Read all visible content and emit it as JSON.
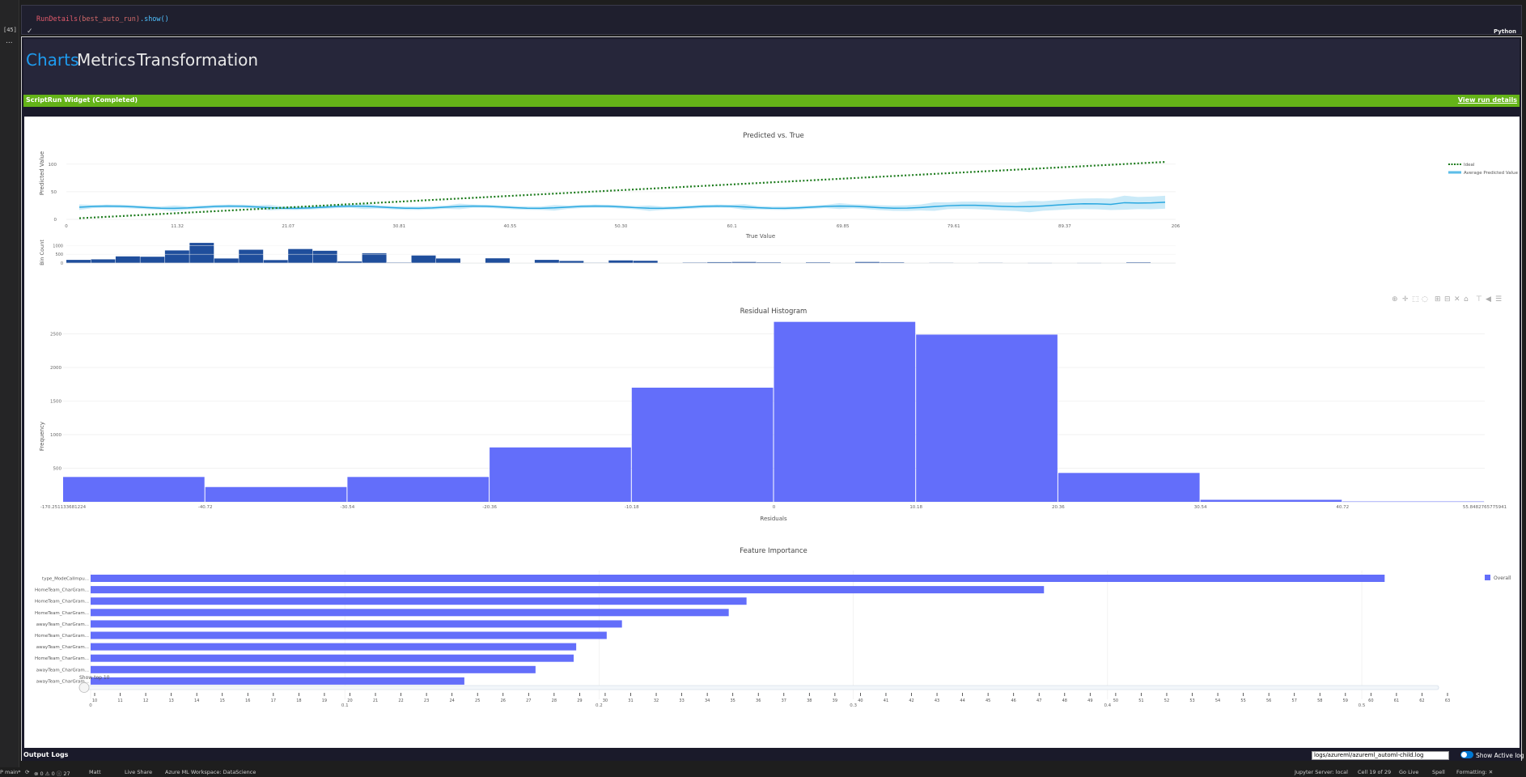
{
  "cell": {
    "code_fn": "RunDetails",
    "code_arg": "(best_auto_run)",
    "code_method": ".show()",
    "status_check": "✓",
    "language": "Python",
    "gutter_label": "[45]",
    "gutter_menu": "..."
  },
  "widget": {
    "tabs": [
      {
        "label": "Charts",
        "active": true
      },
      {
        "label": "Metrics",
        "active": false
      },
      {
        "label": "Transformation",
        "active": false
      }
    ],
    "status_text": "ScriptRun Widget (Completed)",
    "status_color": "#64b318",
    "view_run_details": "View run details"
  },
  "charts": {
    "predicted_vs_true": {
      "title": "Predicted vs. True",
      "ylabel": "Predicted Value",
      "xlabel": "True Value",
      "bin_ylabel": "Bin Count",
      "x_ticks": [
        "0",
        "11.32",
        "21.07",
        "30.81",
        "40.55",
        "50.30",
        "60.1",
        "69.85",
        "79.61",
        "89.37",
        "206"
      ],
      "y_ticks": [
        "0",
        "50",
        "100"
      ],
      "bin_y_ticks": [
        "0",
        "500",
        "1000"
      ],
      "legend": [
        "Ideal",
        "Average Predicted Value"
      ],
      "ideal_color": "#1a7a1a",
      "predicted_color": "#29a8e0",
      "bin_color": "#1f4e9c",
      "bin_counts": [
        180,
        210,
        380,
        360,
        720,
        1150,
        260,
        760,
        170,
        800,
        700,
        90,
        560,
        30,
        430,
        260,
        0,
        270,
        0,
        180,
        120,
        20,
        150,
        130,
        0,
        30,
        50,
        60,
        40,
        0,
        40,
        0,
        60,
        40,
        0,
        20,
        0,
        20,
        0,
        10,
        0,
        10,
        0,
        40,
        0
      ]
    },
    "residual_histogram": {
      "title": "Residual Histogram",
      "ylabel": "Frequency",
      "xlabel": "Residuals",
      "x_ticks": [
        "-170.251133681224",
        "-40.72",
        "-30.54",
        "-20.36",
        "-10.18",
        "0",
        "10.18",
        "20.36",
        "30.54",
        "40.72",
        "55.8482765775941"
      ],
      "y_ticks": [
        "0",
        "500",
        "1000",
        "1500",
        "2000",
        "2500"
      ],
      "ylim": [
        0,
        2700
      ],
      "bar_color": "#636efa",
      "values": [
        370,
        220,
        370,
        810,
        1700,
        2680,
        2490,
        430,
        30,
        5
      ]
    },
    "feature_importance": {
      "title": "Feature Importance",
      "features": [
        "type_ModeCalImpu...",
        "HomeTeam_CharGram...",
        "HomeTeam_CharGram...",
        "HomeTeam_CharGram...",
        "awayTeam_CharGram...",
        "HomeTeam_CharGram...",
        "awayTeam_CharGram...",
        "HomeTeam_CharGram...",
        "awayTeam_CharGram...",
        "awayTeam_CharGram..."
      ],
      "values": [
        0.509,
        0.375,
        0.258,
        0.251,
        0.209,
        0.203,
        0.191,
        0.19,
        0.175,
        0.147
      ],
      "x_ticks": [
        "0",
        "0.1",
        "0.2",
        "0.3",
        "0.4",
        "0.5"
      ],
      "xlim": [
        0,
        0.535
      ],
      "legend": "Overall",
      "bar_color": "#636efa",
      "slider_label": "Show top 10",
      "slider_ticks": [
        "10",
        "11",
        "12",
        "13",
        "14",
        "15",
        "16",
        "17",
        "18",
        "19",
        "20",
        "21",
        "22",
        "23",
        "24",
        "25",
        "26",
        "27",
        "28",
        "29",
        "30",
        "31",
        "32",
        "33",
        "34",
        "35",
        "36",
        "37",
        "38",
        "39",
        "40",
        "41",
        "42",
        "43",
        "44",
        "45",
        "46",
        "47",
        "48",
        "49",
        "50",
        "51",
        "52",
        "53",
        "54",
        "55",
        "56",
        "57",
        "58",
        "59",
        "60",
        "61",
        "62",
        "63"
      ]
    }
  },
  "output_logs": {
    "label": "Output Logs",
    "selected_log": "logs/azureml/azureml_automl-child.log",
    "show_active_log": "Show Active log"
  },
  "statusbar": {
    "branch": "P main*",
    "sync": "⟳",
    "problems": "⊗ 0 ⚠ 0 ⓘ 27",
    "user": "Matt",
    "live_share": "Live Share",
    "workspace": "Azure ML Workspace: DataScience",
    "jupyter": "Jupyter Server: local",
    "cell_pos": "Cell 19 of 29",
    "go_live": "Go Live",
    "spell": "Spell",
    "formatting": "Formatting: ✕"
  }
}
